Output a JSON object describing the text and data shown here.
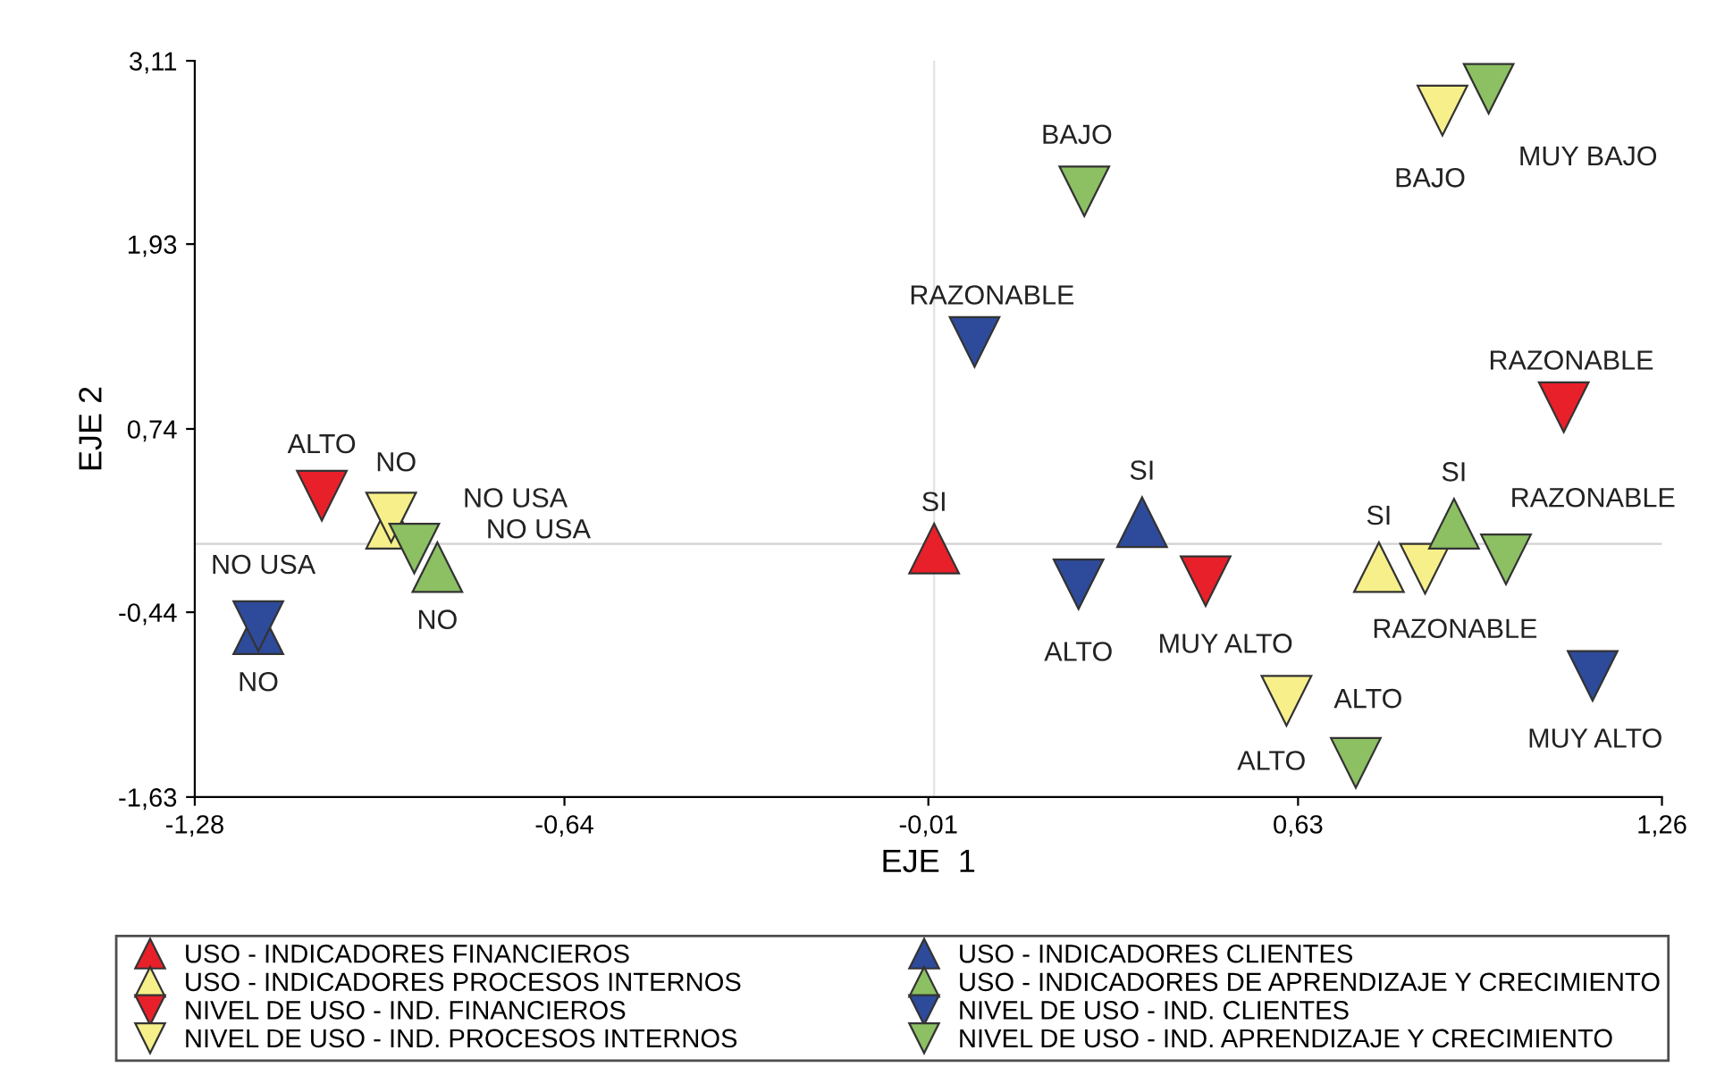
{
  "chart_data": {
    "type": "scatter",
    "xlabel": "EJE  1",
    "ylabel": "EJE 2",
    "xlim": [
      -1.28,
      1.26
    ],
    "ylim": [
      -1.63,
      3.11
    ],
    "xticks": [
      {
        "value": -1.28,
        "label": "-1,28"
      },
      {
        "value": -0.64,
        "label": "-0,64"
      },
      {
        "value": -0.01,
        "label": "-0,01"
      },
      {
        "value": 0.63,
        "label": "0,63"
      },
      {
        "value": 1.26,
        "label": "1,26"
      }
    ],
    "yticks": [
      {
        "value": -1.63,
        "label": "-1,63"
      },
      {
        "value": -0.44,
        "label": "-0,44"
      },
      {
        "value": 0.74,
        "label": "0,74"
      },
      {
        "value": 1.93,
        "label": "1,93"
      },
      {
        "value": 3.11,
        "label": "3,11"
      }
    ],
    "grid": false,
    "legend": "bottom",
    "ref_lines": [
      {
        "axis": "x",
        "value": 0,
        "color": "#e2e2e2"
      },
      {
        "axis": "y",
        "value": 0,
        "color": "#d2d2d2"
      }
    ],
    "series": [
      {
        "name": "USO - INDICADORES FINANCIEROS",
        "color": "#e8202a",
        "marker": "triangle",
        "x": [
          0.0
        ],
        "values": [
          -0.03
        ]
      },
      {
        "name": "USO - INDICADORES PROCESOS INTERNOS",
        "color": "#f7f08a",
        "marker": "triangle",
        "x": [
          0.77,
          -0.94
        ],
        "values": [
          -0.15,
          0.13
        ]
      },
      {
        "name": "NIVEL DE USO - IND. FINANCIEROS",
        "color": "#e8202a",
        "marker": "triangle_down",
        "x": [
          -1.06,
          0.47,
          1.09
        ],
        "values": [
          0.31,
          -0.24,
          0.88
        ]
      },
      {
        "name": "NIVEL DE USO - IND. PROCESOS INTERNOS",
        "color": "#f7f08a",
        "marker": "triangle_down",
        "x": [
          -0.94,
          0.88,
          0.85,
          0.61
        ],
        "values": [
          0.17,
          2.79,
          -0.16,
          -1.01
        ]
      },
      {
        "name": "USO - INDICADORES CLIENTES",
        "color": "#2e4a9a",
        "marker": "triangle",
        "x": [
          0.36,
          -1.17
        ],
        "values": [
          0.14,
          -0.55
        ]
      },
      {
        "name": "USO - INDICADORES DE APRENDIZAJE Y CRECIMIENTO",
        "color": "#8cc063",
        "marker": "triangle",
        "x": [
          0.9,
          -0.86
        ],
        "values": [
          0.13,
          -0.15
        ]
      },
      {
        "name": "NIVEL DE USO - IND. CLIENTES",
        "color": "#2e4a9a",
        "marker": "triangle_down",
        "x": [
          -1.17,
          0.07,
          0.25,
          1.14
        ],
        "values": [
          -0.53,
          1.3,
          -0.26,
          -0.85
        ]
      },
      {
        "name": "NIVEL DE USO - IND. APRENDIZAJE Y CRECIMIENTO",
        "color": "#8cc063",
        "marker": "triangle_down",
        "x": [
          -0.9,
          0.26,
          0.96,
          0.99,
          0.73
        ],
        "values": [
          -0.03,
          2.27,
          2.93,
          -0.1,
          -1.41
        ]
      }
    ],
    "annotations": [
      {
        "text": "SI",
        "x": 0.0,
        "y": -0.03
      },
      {
        "text": "SI",
        "x": 0.77,
        "y": -0.15
      },
      {
        "text": "NO",
        "x": -0.94,
        "y": 0.13
      },
      {
        "text": "ALTO",
        "x": -1.06,
        "y": 0.31
      },
      {
        "text": "MUY ALTO",
        "x": 0.47,
        "y": -0.24
      },
      {
        "text": "RAZONABLE",
        "x": 1.09,
        "y": 0.88
      },
      {
        "text": "NO USA",
        "x": -0.94,
        "y": 0.17
      },
      {
        "text": "BAJO",
        "x": 0.88,
        "y": 2.79
      },
      {
        "text": "RAZONABLE",
        "x": 0.85,
        "y": -0.16
      },
      {
        "text": "ALTO",
        "x": 0.61,
        "y": -1.01
      },
      {
        "text": "SI",
        "x": 0.36,
        "y": 0.14
      },
      {
        "text": "NO",
        "x": -1.17,
        "y": -0.55
      },
      {
        "text": "SI",
        "x": 0.9,
        "y": 0.13
      },
      {
        "text": "NO",
        "x": -0.86,
        "y": -0.15
      },
      {
        "text": "NO USA",
        "x": -1.17,
        "y": -0.53
      },
      {
        "text": "RAZONABLE",
        "x": 0.07,
        "y": 1.3
      },
      {
        "text": "ALTO",
        "x": 0.25,
        "y": -0.26
      },
      {
        "text": "MUY ALTO",
        "x": 1.14,
        "y": -0.85
      },
      {
        "text": "NO USA",
        "x": -0.9,
        "y": -0.03
      },
      {
        "text": "BAJO",
        "x": 0.26,
        "y": 2.27
      },
      {
        "text": "MUY BAJO",
        "x": 0.96,
        "y": 2.93
      },
      {
        "text": "RAZONABLE",
        "x": 0.99,
        "y": -0.1
      },
      {
        "text": "ALTO",
        "x": 0.73,
        "y": -1.41
      }
    ]
  }
}
